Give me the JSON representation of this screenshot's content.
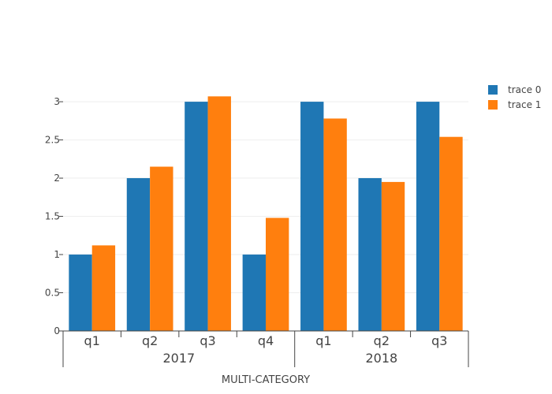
{
  "chart_data": {
    "type": "bar",
    "title": "",
    "xlabel": "MULTI-CATEGORY",
    "ylabel": "",
    "ylim": [
      0,
      3.3
    ],
    "yticks": [
      0,
      0.5,
      1,
      1.5,
      2,
      2.5,
      3
    ],
    "ytick_labels": [
      "0",
      "0.5",
      "1",
      "1.5",
      "2",
      "2.5",
      "3"
    ],
    "grid": true,
    "legend_position": "top-right",
    "groups": [
      {
        "label": "2017",
        "categories": [
          "q1",
          "q2",
          "q3",
          "q4"
        ]
      },
      {
        "label": "2018",
        "categories": [
          "q1",
          "q2",
          "q3"
        ]
      }
    ],
    "categories": [
      "2017 q1",
      "2017 q2",
      "2017 q3",
      "2017 q4",
      "2018 q1",
      "2018 q2",
      "2018 q3"
    ],
    "series": [
      {
        "name": "trace 0",
        "color": "#1f77b4",
        "values": [
          1,
          2,
          3,
          1,
          3,
          2,
          3
        ]
      },
      {
        "name": "trace 1",
        "color": "#ff7f0e",
        "values": [
          1.12,
          2.15,
          3.07,
          1.48,
          2.78,
          1.95,
          2.54
        ]
      }
    ]
  }
}
